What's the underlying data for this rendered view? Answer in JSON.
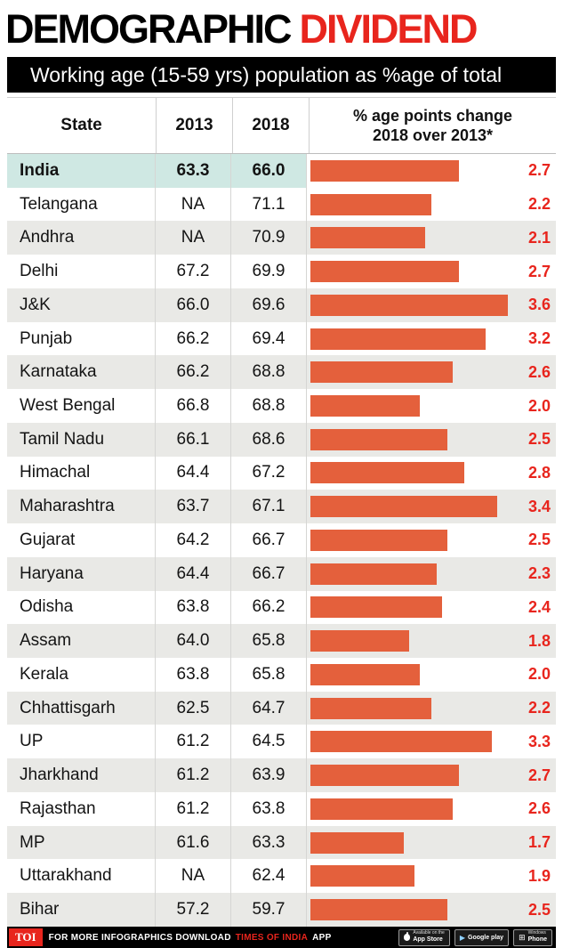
{
  "title": {
    "black": "DEMOGRAPHIC",
    "red": "DIVIDEND"
  },
  "subtitle": "Working age (15-59 yrs) population as %age of total",
  "table": {
    "headers": {
      "state": "State",
      "y2013": "2013",
      "y2018": "2018",
      "change_line1": "% age points change",
      "change_line2": "2018 over 2013*"
    }
  },
  "chart_data": {
    "type": "bar",
    "title": "DEMOGRAPHIC DIVIDEND",
    "subtitle": "Working age (15-59 yrs) population as %age of total",
    "columns": [
      "State",
      "2013",
      "2018",
      "% age points change 2018 over 2013*"
    ],
    "bar_axis_max": 3.6,
    "highlight_row": "India",
    "rows": [
      {
        "state": "India",
        "y2013": "63.3",
        "y2018": "66.0",
        "change": 2.7,
        "highlight": true
      },
      {
        "state": "Telangana",
        "y2013": "NA",
        "y2018": "71.1",
        "change": 2.2
      },
      {
        "state": "Andhra",
        "y2013": "NA",
        "y2018": "70.9",
        "change": 2.1
      },
      {
        "state": "Delhi",
        "y2013": "67.2",
        "y2018": "69.9",
        "change": 2.7
      },
      {
        "state": "J&K",
        "y2013": "66.0",
        "y2018": "69.6",
        "change": 3.6
      },
      {
        "state": "Punjab",
        "y2013": "66.2",
        "y2018": "69.4",
        "change": 3.2
      },
      {
        "state": "Karnataka",
        "y2013": "66.2",
        "y2018": "68.8",
        "change": 2.6
      },
      {
        "state": "West Bengal",
        "y2013": "66.8",
        "y2018": "68.8",
        "change": 2.0
      },
      {
        "state": "Tamil Nadu",
        "y2013": "66.1",
        "y2018": "68.6",
        "change": 2.5
      },
      {
        "state": "Himachal",
        "y2013": "64.4",
        "y2018": "67.2",
        "change": 2.8
      },
      {
        "state": "Maharashtra",
        "y2013": "63.7",
        "y2018": "67.1",
        "change": 3.4
      },
      {
        "state": "Gujarat",
        "y2013": "64.2",
        "y2018": "66.7",
        "change": 2.5
      },
      {
        "state": "Haryana",
        "y2013": "64.4",
        "y2018": "66.7",
        "change": 2.3
      },
      {
        "state": "Odisha",
        "y2013": "63.8",
        "y2018": "66.2",
        "change": 2.4
      },
      {
        "state": "Assam",
        "y2013": "64.0",
        "y2018": "65.8",
        "change": 1.8
      },
      {
        "state": "Kerala",
        "y2013": "63.8",
        "y2018": "65.8",
        "change": 2.0
      },
      {
        "state": "Chhattisgarh",
        "y2013": "62.5",
        "y2018": "64.7",
        "change": 2.2
      },
      {
        "state": "UP",
        "y2013": "61.2",
        "y2018": "64.5",
        "change": 3.3
      },
      {
        "state": "Jharkhand",
        "y2013": "61.2",
        "y2018": "63.9",
        "change": 2.7
      },
      {
        "state": "Rajasthan",
        "y2013": "61.2",
        "y2018": "63.8",
        "change": 2.6
      },
      {
        "state": "MP",
        "y2013": "61.6",
        "y2018": "63.3",
        "change": 1.7
      },
      {
        "state": "Uttarakhand",
        "y2013": "NA",
        "y2018": "62.4",
        "change": 1.9
      },
      {
        "state": "Bihar",
        "y2013": "57.2",
        "y2018": "59.7",
        "change": 2.5
      }
    ]
  },
  "footer": {
    "logo": "TOI",
    "text_before": "FOR MORE  INFOGRAPHICS DOWNLOAD",
    "brand": "TIMES OF INDIA",
    "text_after": "APP",
    "badges": {
      "appstore_line1": "Available on the",
      "appstore_line2": "App Store",
      "googleplay": "Google play",
      "windows_line1": "Windows",
      "windows_line2": "Phone"
    }
  },
  "colors": {
    "accent_red": "#e8251d",
    "bar_orange": "#e4603c",
    "highlight_teal": "#cfe8e3",
    "row_shade": "#e9e9e6"
  }
}
